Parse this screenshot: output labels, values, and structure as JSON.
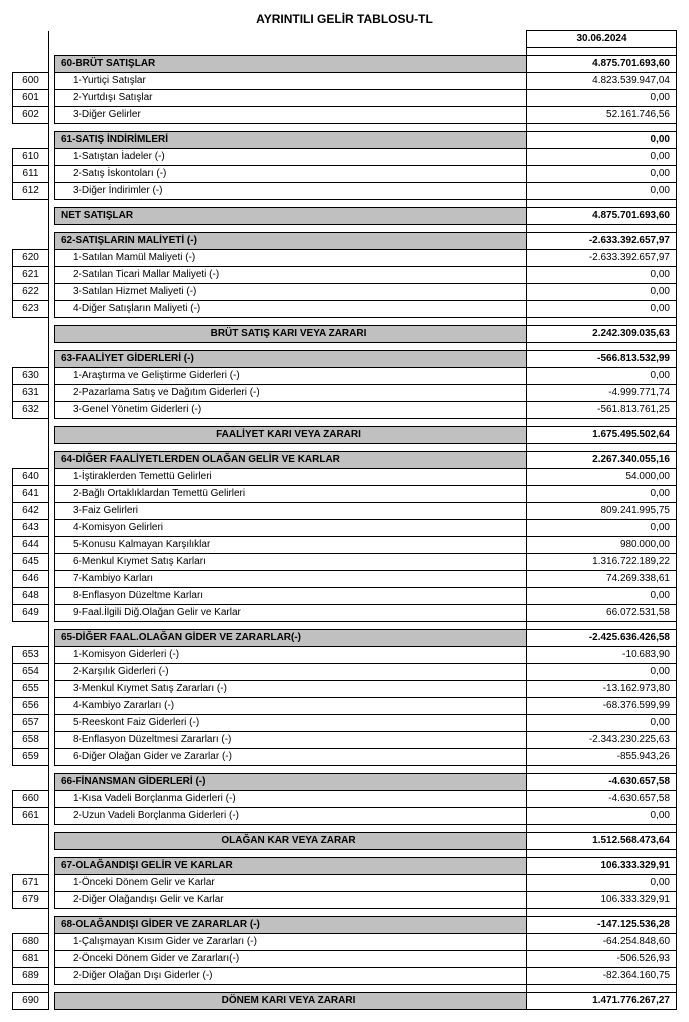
{
  "title": "AYRINTILI GELİR TABLOSU-TL",
  "date": "30.06.2024",
  "styling": {
    "header_bg": "#c0c0c0",
    "border_color": "#000000",
    "font_size_body": 10,
    "font_size_title": 12,
    "font_family": "Arial",
    "col_code_width": 36,
    "col_value_width": 150
  },
  "sections": [
    {
      "type": "header",
      "code": "",
      "label": "60-BRÜT SATIŞLAR",
      "value": "4.875.701.693,60"
    },
    {
      "type": "item",
      "code": "600",
      "label": "1-Yurtiçi Satışlar",
      "value": "4.823.539.947,04"
    },
    {
      "type": "item",
      "code": "601",
      "label": "2-Yurtdışı Satışlar",
      "value": "0,00"
    },
    {
      "type": "item",
      "code": "602",
      "label": "3-Diğer Gelirler",
      "value": "52.161.746,56"
    },
    {
      "type": "gap"
    },
    {
      "type": "header",
      "code": "",
      "label": "61-SATIŞ İNDİRİMLERİ",
      "value": "0,00"
    },
    {
      "type": "item",
      "code": "610",
      "label": "1-Satıştan İadeler (-)",
      "value": "0,00"
    },
    {
      "type": "item",
      "code": "611",
      "label": "2-Satış İskontoları (-)",
      "value": "0,00"
    },
    {
      "type": "item",
      "code": "612",
      "label": "3-Diğer İndirimler (-)",
      "value": "0,00"
    },
    {
      "type": "gap"
    },
    {
      "type": "header",
      "code": "",
      "label": "NET SATIŞLAR",
      "value": "4.875.701.693,60"
    },
    {
      "type": "gap"
    },
    {
      "type": "header",
      "code": "",
      "label": "62-SATIŞLARIN MALİYETİ (-)",
      "value": "-2.633.392.657,97"
    },
    {
      "type": "item",
      "code": "620",
      "label": "1-Satılan Mamül Maliyeti (-)",
      "value": "-2.633.392.657,97"
    },
    {
      "type": "item",
      "code": "621",
      "label": "2-Satılan Ticari Mallar Maliyeti (-)",
      "value": "0,00"
    },
    {
      "type": "item",
      "code": "622",
      "label": "3-Satılan Hizmet Maliyeti (-)",
      "value": "0,00"
    },
    {
      "type": "item",
      "code": "623",
      "label": "4-Diğer Satışların Maliyeti (-)",
      "value": "0,00"
    },
    {
      "type": "gap"
    },
    {
      "type": "header",
      "code": "",
      "label": "BRÜT SATIŞ KARI VEYA ZARARI",
      "center": true,
      "value": "2.242.309.035,63"
    },
    {
      "type": "gap"
    },
    {
      "type": "header",
      "code": "",
      "label": "63-FAALİYET GİDERLERİ (-)",
      "value": "-566.813.532,99"
    },
    {
      "type": "item",
      "code": "630",
      "label": "1-Araştırma ve Geliştirme Giderleri (-)",
      "value": "0,00"
    },
    {
      "type": "item",
      "code": "631",
      "label": "2-Pazarlama Satış ve Dağıtım Giderleri (-)",
      "value": "-4.999.771,74"
    },
    {
      "type": "item",
      "code": "632",
      "label": "3-Genel Yönetim Giderleri (-)",
      "value": "-561.813.761,25"
    },
    {
      "type": "gap"
    },
    {
      "type": "header",
      "code": "",
      "label": "FAALİYET KARI VEYA ZARARI",
      "center": true,
      "value": "1.675.495.502,64"
    },
    {
      "type": "gap"
    },
    {
      "type": "header",
      "code": "",
      "label": "64-DİĞER FAALİYETLERDEN OLAĞAN GELİR VE KARLAR",
      "value": "2.267.340.055,16"
    },
    {
      "type": "item",
      "code": "640",
      "label": "1-İştiraklerden Temettü Gelirleri",
      "value": "54.000,00"
    },
    {
      "type": "item",
      "code": "641",
      "label": "2-Bağlı Ortaklıklardan Temettü Gelirleri",
      "value": "0,00"
    },
    {
      "type": "item",
      "code": "642",
      "label": "3-Faiz Gelirleri",
      "value": "809.241.995,75"
    },
    {
      "type": "item",
      "code": "643",
      "label": "4-Komisyon Gelirleri",
      "value": "0,00"
    },
    {
      "type": "item",
      "code": "644",
      "label": "5-Konusu Kalmayan Karşılıklar",
      "value": "980.000,00"
    },
    {
      "type": "item",
      "code": "645",
      "label": "6-Menkul Kıymet Satış Karları",
      "value": "1.316.722.189,22"
    },
    {
      "type": "item",
      "code": "646",
      "label": "7-Kambiyo Karları",
      "value": "74.269.338,61"
    },
    {
      "type": "item",
      "code": "648",
      "label": "8-Enflasyon Düzeltme Karları",
      "value": "0,00"
    },
    {
      "type": "item",
      "code": "649",
      "label": "9-Faal.İlgili Diğ.Olağan Gelir ve Karlar",
      "value": "66.072.531,58"
    },
    {
      "type": "gap"
    },
    {
      "type": "header",
      "code": "",
      "label": "65-DİĞER FAAL.OLAĞAN GİDER VE ZARARLAR(-)",
      "value": "-2.425.636.426,58"
    },
    {
      "type": "item",
      "code": "653",
      "label": "1-Komisyon Giderleri (-)",
      "value": "-10.683,90"
    },
    {
      "type": "item",
      "code": "654",
      "label": "2-Karşılık Giderleri (-)",
      "value": "0,00"
    },
    {
      "type": "item",
      "code": "655",
      "label": "3-Menkul Kıymet Satış Zararları (-)",
      "value": "-13.162.973,80"
    },
    {
      "type": "item",
      "code": "656",
      "label": "4-Kambiyo Zararları (-)",
      "value": "-68.376.599,99"
    },
    {
      "type": "item",
      "code": "657",
      "label": "5-Reeskont Faiz  Giderleri (-)",
      "value": "0,00"
    },
    {
      "type": "item",
      "code": "658",
      "label": "8-Enflasyon Düzeltmesi Zararları (-)",
      "value": "-2.343.230.225,63"
    },
    {
      "type": "item",
      "code": "659",
      "label": "6-Diğer Olağan Gider ve Zararlar (-)",
      "value": "-855.943,26"
    },
    {
      "type": "gap"
    },
    {
      "type": "header",
      "code": "",
      "label": "66-FİNANSMAN GİDERLERİ (-)",
      "value": "-4.630.657,58"
    },
    {
      "type": "item",
      "code": "660",
      "label": "1-Kısa Vadeli Borçlanma Giderleri (-)",
      "value": "-4.630.657,58"
    },
    {
      "type": "item",
      "code": "661",
      "label": "2-Uzun Vadeli Borçlanma Giderleri (-)",
      "value": "0,00"
    },
    {
      "type": "gap"
    },
    {
      "type": "header",
      "code": "",
      "label": "OLAĞAN KAR VEYA ZARAR",
      "center": true,
      "value": "1.512.568.473,64"
    },
    {
      "type": "gap"
    },
    {
      "type": "header",
      "code": "",
      "label": "67-OLAĞANDIŞI GELİR VE KARLAR",
      "value": "106.333.329,91"
    },
    {
      "type": "item",
      "code": "671",
      "label": "1-Önceki Dönem Gelir ve Karlar",
      "value": "0,00"
    },
    {
      "type": "item",
      "code": "679",
      "label": "2-Diğer Olağandışı Gelir ve Karlar",
      "value": "106.333.329,91"
    },
    {
      "type": "gap"
    },
    {
      "type": "header",
      "code": "",
      "label": "68-OLAĞANDIŞI GİDER VE ZARARLAR (-)",
      "value": "-147.125.536,28"
    },
    {
      "type": "item",
      "code": "680",
      "label": "1-Çalışmayan Kısım Gider ve Zararları (-)",
      "value": "-64.254.848,60"
    },
    {
      "type": "item",
      "code": "681",
      "label": "2-Önceki Dönem Gider ve Zararları(-)",
      "value": "-506.526,93"
    },
    {
      "type": "item",
      "code": "689",
      "label": "2-Diğer Olağan  Dışı Giderler (-)",
      "value": "-82.364.160,75"
    },
    {
      "type": "gap"
    },
    {
      "type": "header",
      "code": "690",
      "label": "DÖNEM KARI VEYA ZARARI",
      "center": true,
      "value": "1.471.776.267,27"
    }
  ]
}
